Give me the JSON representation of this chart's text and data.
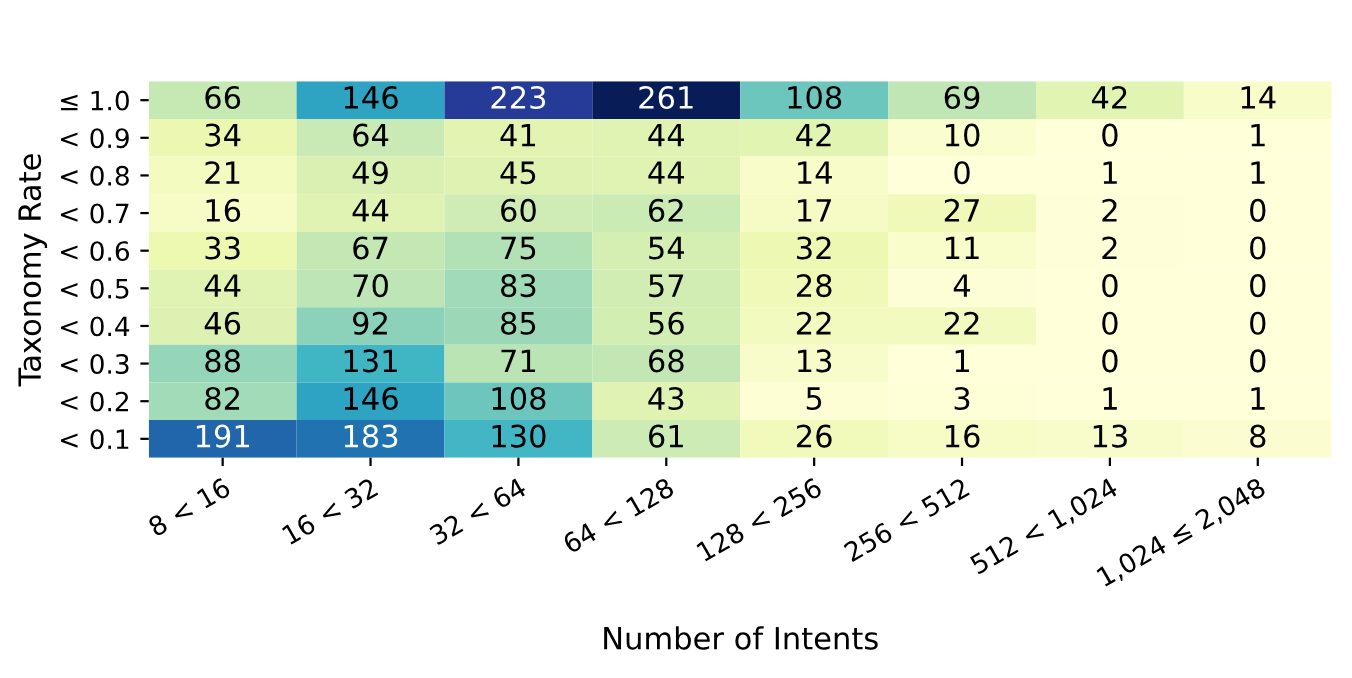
{
  "chart_data": {
    "type": "heatmap",
    "xlabel": "Number of Intents",
    "ylabel": "Taxonomy Rate",
    "categories": [
      "8 < 16",
      "16 < 32",
      "32 < 64",
      "64 < 128",
      "128 < 256",
      "256 < 512",
      "512 < 1,024",
      "1,024 ≤ 2,048"
    ],
    "y_categories": [
      "≤ 1.0",
      "< 0.9",
      "< 0.8",
      "< 0.7",
      "< 0.6",
      "< 0.5",
      "< 0.4",
      "< 0.3",
      "< 0.2",
      "< 0.1"
    ],
    "cells": [
      [
        66,
        146,
        223,
        261,
        108,
        69,
        42,
        14
      ],
      [
        34,
        64,
        41,
        44,
        42,
        10,
        0,
        1
      ],
      [
        21,
        49,
        45,
        44,
        14,
        0,
        1,
        1
      ],
      [
        16,
        44,
        60,
        62,
        17,
        27,
        2,
        0
      ],
      [
        33,
        67,
        75,
        54,
        32,
        11,
        2,
        0
      ],
      [
        44,
        70,
        83,
        57,
        28,
        4,
        0,
        0
      ],
      [
        46,
        92,
        85,
        56,
        22,
        22,
        0,
        0
      ],
      [
        88,
        131,
        71,
        68,
        13,
        1,
        0,
        0
      ],
      [
        82,
        146,
        108,
        43,
        5,
        3,
        1,
        1
      ],
      [
        191,
        183,
        130,
        61,
        26,
        16,
        13,
        8
      ]
    ],
    "data_labels": true
  }
}
